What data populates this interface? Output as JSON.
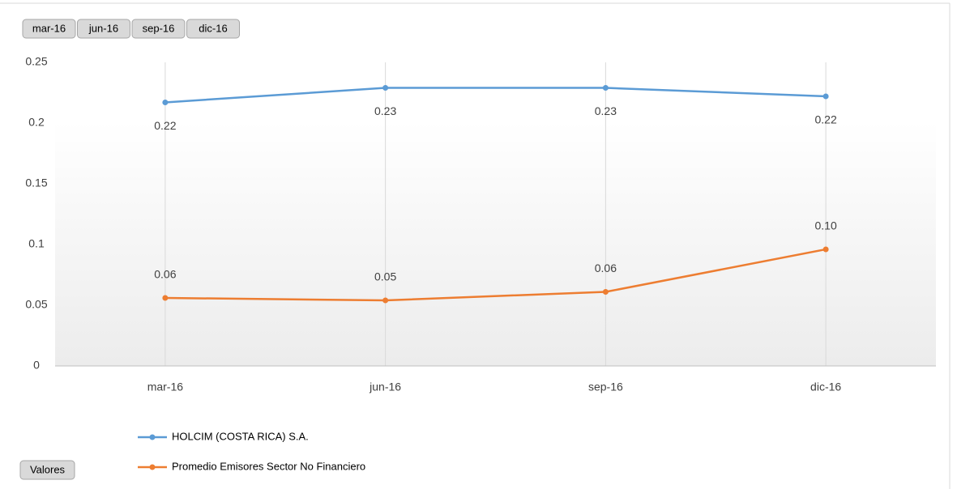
{
  "chart_data": {
    "type": "line",
    "categories": [
      "mar-16",
      "jun-16",
      "sep-16",
      "dic-16"
    ],
    "series": [
      {
        "name": "HOLCIM (COSTA RICA) S.A.",
        "color": "#5b9bd5",
        "values": [
          0.217,
          0.229,
          0.229,
          0.222
        ],
        "value_labels": [
          "0.22",
          "0.23",
          "0.23",
          "0.22"
        ]
      },
      {
        "name": "Promedio  Emisores Sector No Financiero",
        "color": "#ed7d31",
        "values": [
          0.056,
          0.054,
          0.061,
          0.096
        ],
        "value_labels": [
          "0.06",
          "0.05",
          "0.06",
          "0.10"
        ]
      }
    ],
    "ylim": [
      0,
      0.25
    ],
    "yticks": [
      0,
      0.05,
      0.1,
      0.15,
      0.2,
      0.25
    ],
    "category_grid": true,
    "legend": "bottom",
    "filter_buttons": [
      "mar-16",
      "jun-16",
      "sep-16",
      "dic-16"
    ],
    "field_button": "Valores"
  }
}
